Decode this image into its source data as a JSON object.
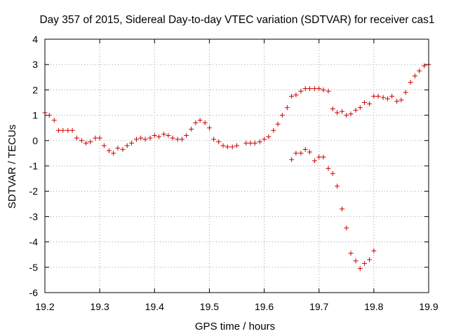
{
  "chart_data": {
    "type": "scatter",
    "title": "Day 357 of 2015, Sidereal Day-to-day VTEC variation (SDTVAR) for receiver cas1",
    "xlabel": "GPS time / hours",
    "ylabel": "SDTVAR / TECUs",
    "xlim": [
      19.2,
      19.9
    ],
    "ylim": [
      -6,
      4
    ],
    "xticks": [
      "19.2",
      "19.3",
      "19.4",
      "19.5",
      "19.6",
      "19.7",
      "19.8",
      "19.9"
    ],
    "yticks": [
      "-6",
      "-5",
      "-4",
      "-3",
      "-2",
      "-1",
      "0",
      "1",
      "2",
      "3",
      "4"
    ],
    "grid": true,
    "marker": "+",
    "color": "#cc0000",
    "series": [
      {
        "points": [
          [
            19.2,
            1.1
          ],
          [
            19.208,
            1.0
          ],
          [
            19.217,
            0.8
          ],
          [
            19.225,
            0.4
          ],
          [
            19.233,
            0.4
          ],
          [
            19.242,
            0.4
          ],
          [
            19.25,
            0.4
          ],
          [
            19.258,
            0.1
          ],
          [
            19.267,
            0.0
          ],
          [
            19.275,
            -0.1
          ],
          [
            19.283,
            -0.05
          ],
          [
            19.292,
            0.1
          ],
          [
            19.3,
            0.1
          ],
          [
            19.308,
            -0.2
          ],
          [
            19.317,
            -0.4
          ],
          [
            19.325,
            -0.5
          ],
          [
            19.333,
            -0.3
          ],
          [
            19.342,
            -0.35
          ],
          [
            19.35,
            -0.2
          ],
          [
            19.358,
            -0.1
          ],
          [
            19.367,
            0.05
          ],
          [
            19.375,
            0.1
          ],
          [
            19.383,
            0.05
          ],
          [
            19.392,
            0.1
          ],
          [
            19.4,
            0.2
          ],
          [
            19.408,
            0.15
          ],
          [
            19.417,
            0.25
          ],
          [
            19.425,
            0.2
          ],
          [
            19.433,
            0.1
          ],
          [
            19.442,
            0.05
          ],
          [
            19.45,
            0.05
          ],
          [
            19.458,
            0.2
          ],
          [
            19.467,
            0.45
          ],
          [
            19.475,
            0.7
          ],
          [
            19.483,
            0.8
          ],
          [
            19.492,
            0.7
          ],
          [
            19.5,
            0.5
          ],
          [
            19.508,
            0.05
          ],
          [
            19.517,
            -0.05
          ],
          [
            19.525,
            -0.2
          ],
          [
            19.533,
            -0.25
          ],
          [
            19.542,
            -0.25
          ],
          [
            19.55,
            -0.2
          ],
          [
            19.567,
            -0.1
          ],
          [
            19.575,
            -0.1
          ],
          [
            19.583,
            -0.1
          ],
          [
            19.592,
            -0.05
          ],
          [
            19.6,
            0.05
          ],
          [
            19.608,
            0.15
          ],
          [
            19.617,
            0.4
          ],
          [
            19.625,
            0.65
          ],
          [
            19.633,
            1.0
          ],
          [
            19.642,
            1.3
          ],
          [
            19.65,
            1.75
          ],
          [
            19.658,
            1.8
          ],
          [
            19.667,
            1.95
          ],
          [
            19.675,
            2.05
          ],
          [
            19.683,
            2.05
          ],
          [
            19.692,
            2.05
          ],
          [
            19.7,
            2.05
          ],
          [
            19.708,
            2.0
          ],
          [
            19.717,
            1.95
          ],
          [
            19.725,
            1.25
          ],
          [
            19.733,
            1.1
          ],
          [
            19.742,
            1.15
          ],
          [
            19.75,
            1.0
          ],
          [
            19.758,
            1.05
          ],
          [
            19.767,
            1.2
          ],
          [
            19.775,
            1.3
          ],
          [
            19.783,
            1.5
          ],
          [
            19.792,
            1.45
          ],
          [
            19.8,
            1.75
          ],
          [
            19.808,
            1.75
          ],
          [
            19.817,
            1.7
          ],
          [
            19.825,
            1.65
          ],
          [
            19.833,
            1.75
          ],
          [
            19.842,
            1.55
          ],
          [
            19.85,
            1.6
          ],
          [
            19.858,
            1.9
          ],
          [
            19.867,
            2.3
          ],
          [
            19.875,
            2.55
          ],
          [
            19.883,
            2.75
          ],
          [
            19.892,
            2.95
          ],
          [
            19.9,
            3.0
          ],
          [
            19.65,
            -0.75
          ],
          [
            19.658,
            -0.5
          ],
          [
            19.667,
            -0.5
          ],
          [
            19.675,
            -0.35
          ],
          [
            19.683,
            -0.45
          ],
          [
            19.692,
            -0.8
          ],
          [
            19.7,
            -0.65
          ],
          [
            19.708,
            -0.65
          ],
          [
            19.717,
            -1.1
          ],
          [
            19.725,
            -1.3
          ],
          [
            19.733,
            -1.8
          ],
          [
            19.742,
            -2.7
          ],
          [
            19.75,
            -3.45
          ],
          [
            19.758,
            -4.45
          ],
          [
            19.767,
            -4.75
          ],
          [
            19.775,
            -5.05
          ],
          [
            19.783,
            -4.85
          ],
          [
            19.792,
            -4.7
          ],
          [
            19.8,
            -4.35
          ]
        ]
      }
    ]
  }
}
